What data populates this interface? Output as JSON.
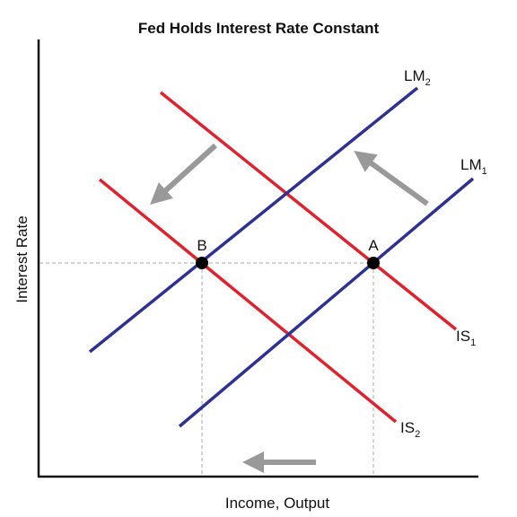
{
  "title": "Fed Holds Interest Rate Constant",
  "axes": {
    "ylabel": "Interest Rate",
    "xlabel": "Income, Output"
  },
  "curves": {
    "lm2": {
      "name": "LM",
      "sub": "2"
    },
    "lm1": {
      "name": "LM",
      "sub": "1"
    },
    "is1": {
      "name": "IS",
      "sub": "1"
    },
    "is2": {
      "name": "IS",
      "sub": "2"
    }
  },
  "points": {
    "a": "A",
    "b": "B"
  },
  "colors": {
    "is_curve": "#e0222f",
    "lm_curve": "#2e3192",
    "arrow": "#999999",
    "axis": "#111111",
    "guide": "#aaaaaa",
    "point": "#000000"
  }
}
